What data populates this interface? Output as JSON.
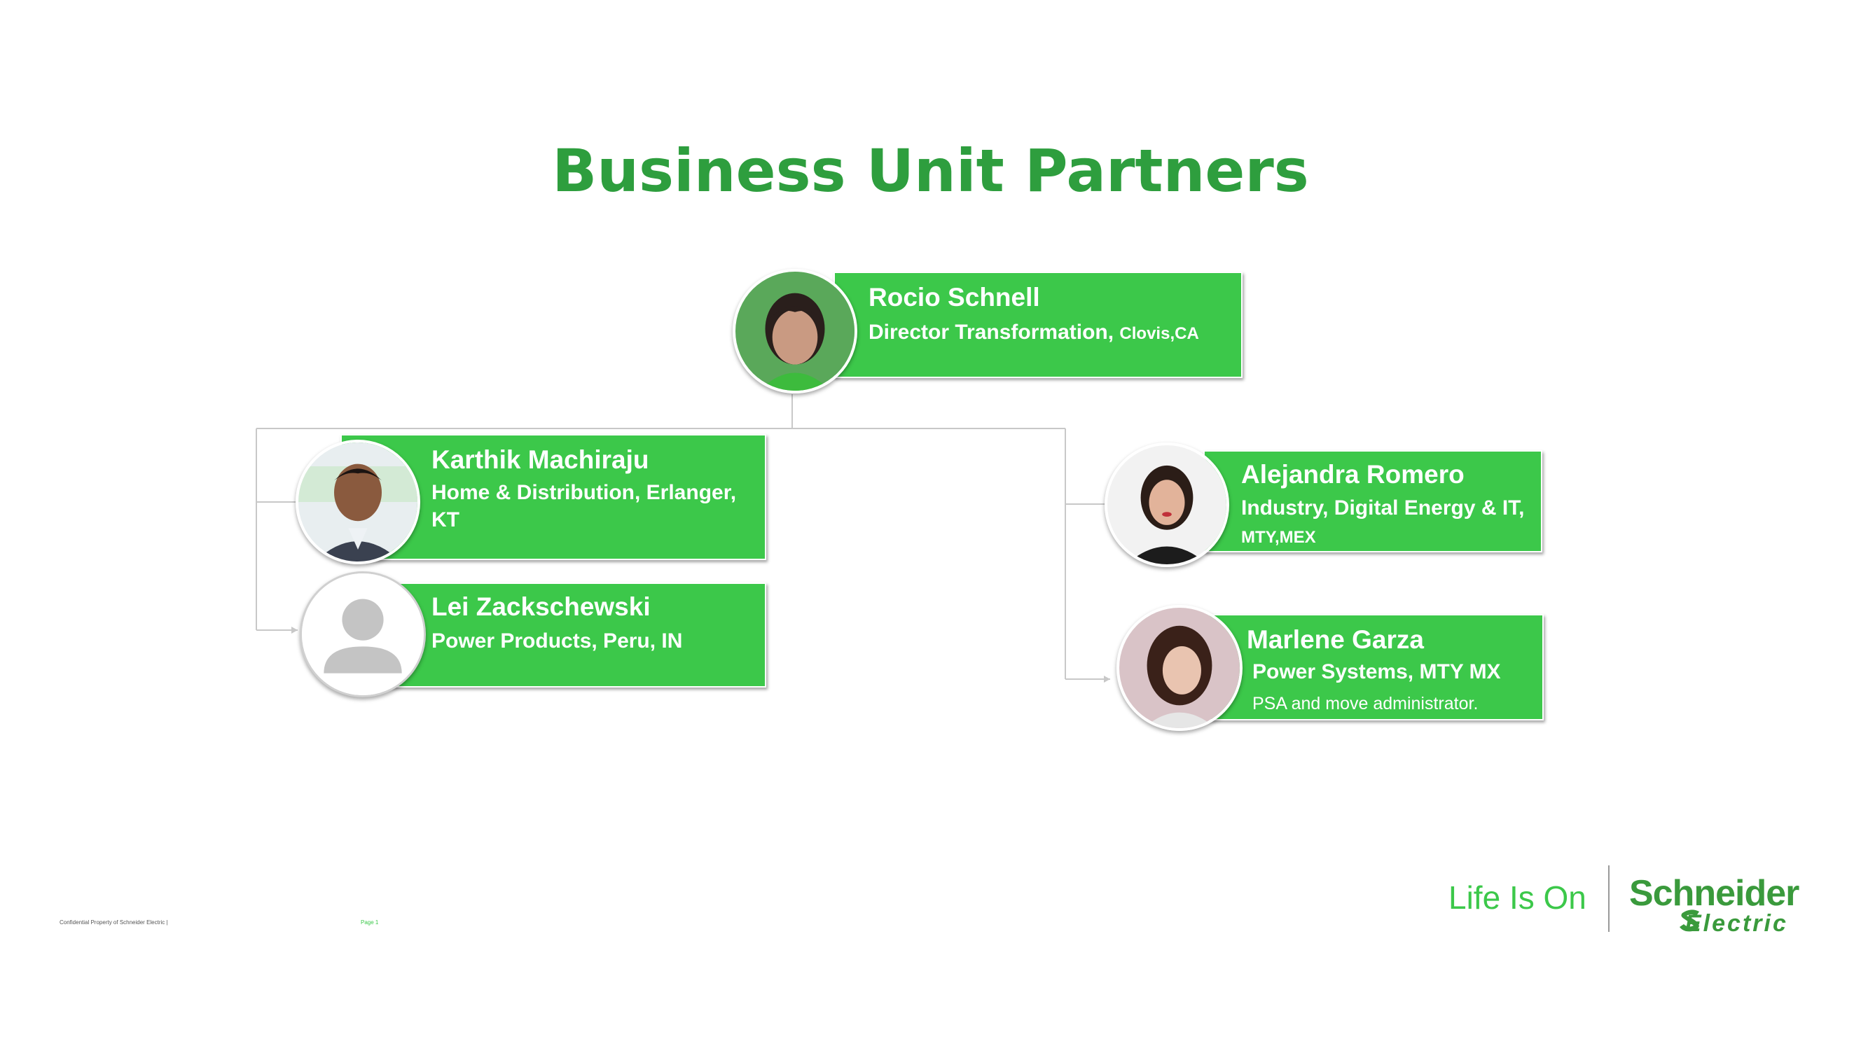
{
  "slide": {
    "title": "Business Unit Partners"
  },
  "org": {
    "root": {
      "name": "Rocio Schnell",
      "role": "Director Transformation,",
      "location": "Clovis,CA"
    },
    "left": [
      {
        "name": "Karthik Machiraju",
        "role_line1": "Home & Distribution, Erlanger,",
        "role_line2": "KT"
      },
      {
        "name": "Lei Zackschewski",
        "role_line1": "Power Products, Peru, IN"
      }
    ],
    "right": [
      {
        "name": "Alejandra Romero",
        "role_line1": "Industry, Digital Energy & IT,",
        "role_line2": "MTY,MEX"
      },
      {
        "name": "Marlene Garza",
        "role_line1": "Power Systems, MTY MX",
        "note": "PSA and move administrator."
      }
    ]
  },
  "footer": {
    "confidential": "Confidential Property of Schneider Electric |",
    "page": "Page 1",
    "tagline": "Life Is On",
    "brand_line1": "Schneider",
    "brand_line2": "Electric"
  },
  "colors": {
    "accent": "#3cc84a",
    "title": "#2e9e3e",
    "connector": "#c8c8c8"
  },
  "icons": {
    "placeholder_avatar": "person-silhouette-icon",
    "power": "power-icon"
  }
}
